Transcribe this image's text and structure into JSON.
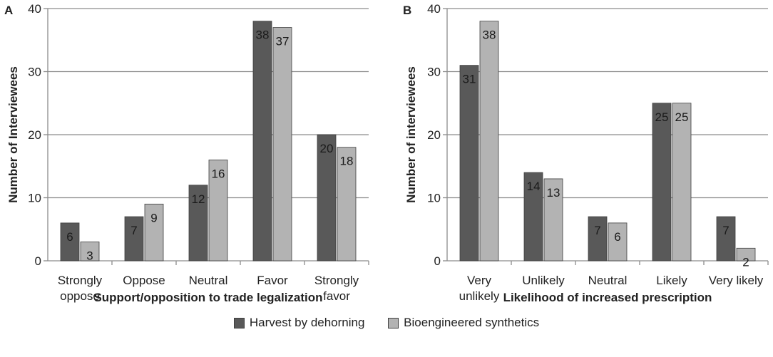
{
  "chart_data": [
    {
      "type": "bar",
      "panel_label": "A",
      "title": "",
      "xlabel": "Support/opposition to trade legalization",
      "ylabel": "Number of Interviewees",
      "categories": [
        [
          "Strongly",
          "oppose"
        ],
        [
          "Oppose"
        ],
        [
          "Neutral"
        ],
        [
          "Favor"
        ],
        [
          "Strongly",
          "favor"
        ]
      ],
      "series": [
        {
          "name": "Harvest by dehorning",
          "values": [
            6,
            7,
            12,
            38,
            20
          ]
        },
        {
          "name": "Bioengineered synthetics",
          "values": [
            3,
            9,
            16,
            37,
            18
          ]
        }
      ],
      "ylim": [
        0,
        40
      ],
      "yticks": [
        0,
        10,
        20,
        30,
        40
      ],
      "grid": true
    },
    {
      "type": "bar",
      "panel_label": "B",
      "title": "",
      "xlabel": "Likelihood of increased prescription",
      "ylabel": "Number of interviewees",
      "categories": [
        [
          "Very",
          "unlikely"
        ],
        [
          "Unlikely"
        ],
        [
          "Neutral"
        ],
        [
          "Likely"
        ],
        [
          "Very likely"
        ]
      ],
      "series": [
        {
          "name": "Harvest by dehorning",
          "values": [
            31,
            14,
            7,
            25,
            7
          ]
        },
        {
          "name": "Bioengineered synthetics",
          "values": [
            38,
            13,
            6,
            25,
            2
          ]
        }
      ],
      "ylim": [
        0,
        40
      ],
      "yticks": [
        0,
        10,
        20,
        30,
        40
      ],
      "grid": true
    }
  ],
  "legend": [
    {
      "label": "Harvest by dehorning",
      "color": "#595959"
    },
    {
      "label": "Bioengineered synthetics",
      "color": "#b3b3b3"
    }
  ],
  "colors": {
    "grid": "#8c8c8c",
    "axis": "#8c8c8c",
    "text": "#222222",
    "bar_edge": "#3f3f3f"
  }
}
